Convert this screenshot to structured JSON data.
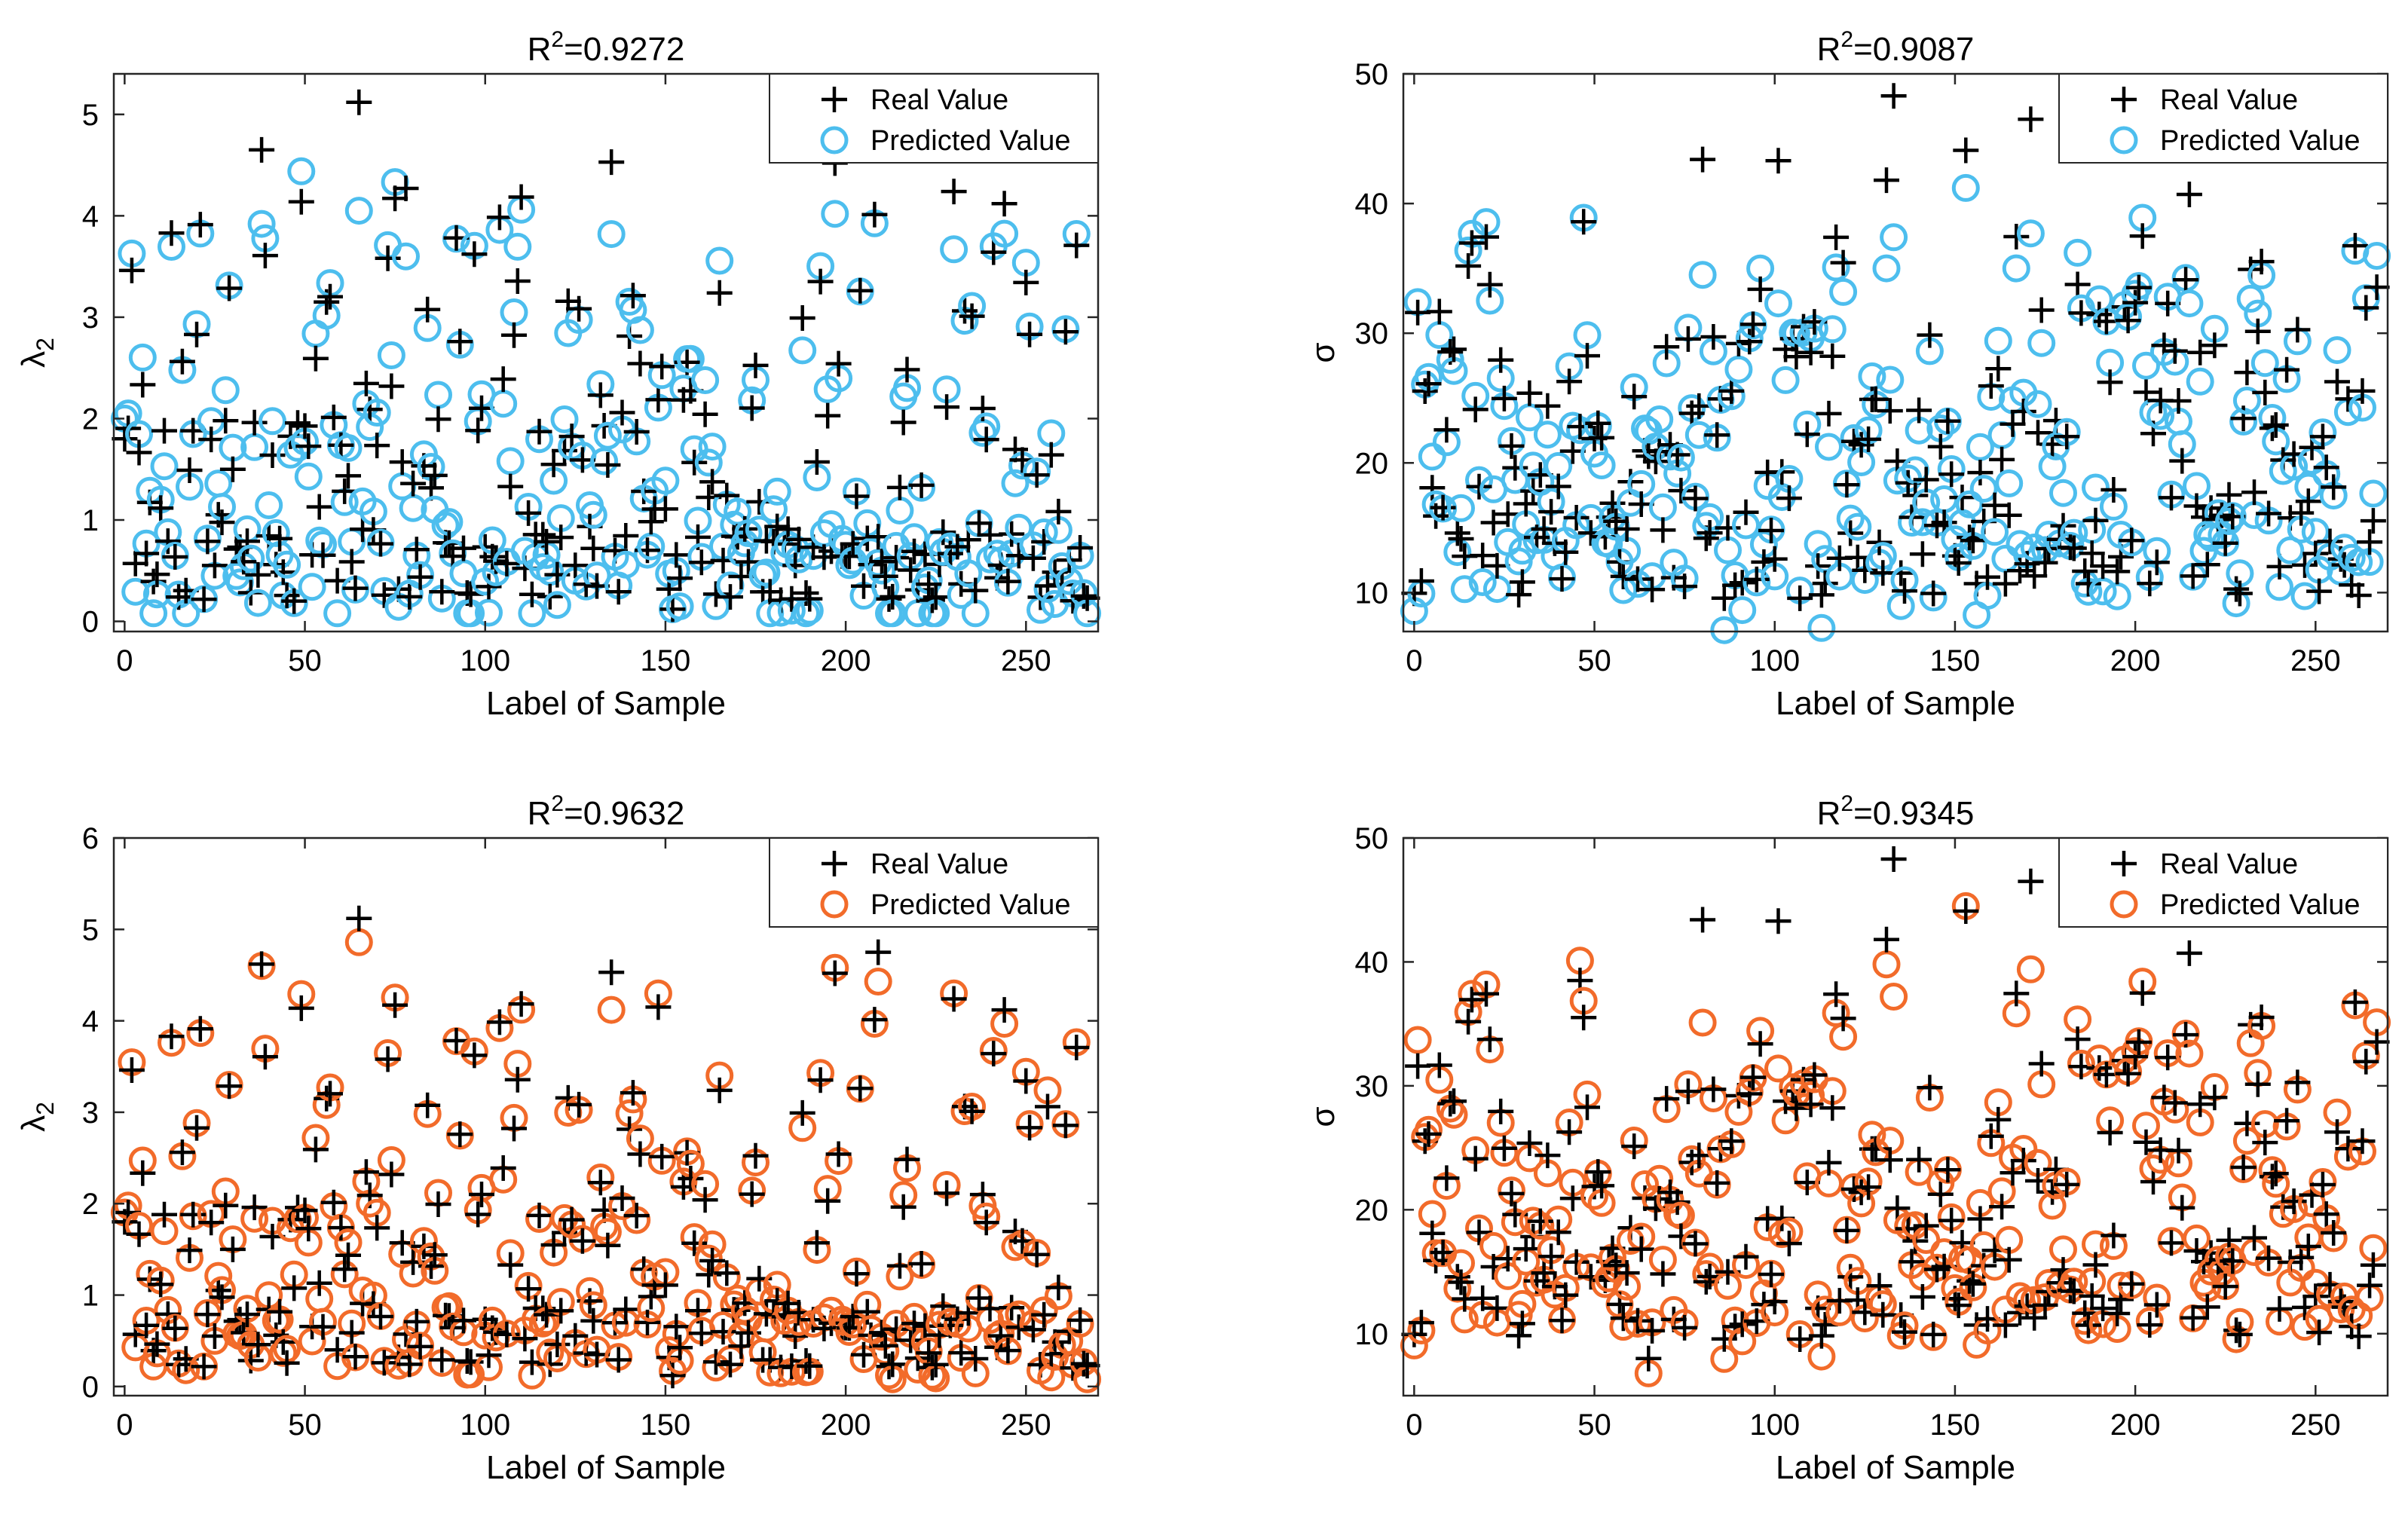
{
  "colors": {
    "predicted_blue": "#4DBEEE",
    "predicted_orange": "#F26B2A",
    "real": "#000000",
    "axis": "#262626"
  },
  "chart_data": [
    {
      "type": "scatter",
      "title": "R2=0.9272",
      "title_parts": {
        "base": "R",
        "sup": "2",
        "rest": "=0.9272"
      },
      "xlabel": "Label of Sample",
      "ylabel": "λ2",
      "ylabel_parts": {
        "base": "λ",
        "sub": "2"
      },
      "xlim": [
        -3,
        270
      ],
      "ylim": [
        -0.1,
        5.4
      ],
      "xticks": [
        0,
        50,
        100,
        150,
        200,
        250
      ],
      "yticks": [
        0,
        1,
        2,
        3,
        4,
        5
      ],
      "xtick_labels": [
        "0",
        "50",
        "100",
        "150",
        "200",
        "250"
      ],
      "ytick_labels": [
        "0",
        "1",
        "2",
        "3",
        "4",
        "5"
      ],
      "legend": {
        "position": "top-right",
        "entries": [
          "Real Value",
          "Predicted Value"
        ]
      },
      "predicted_color": "#4DBEEE",
      "gen": {
        "seed": 11,
        "n": 268,
        "lowMin": 0.2,
        "lowMax": 0.9,
        "midMin": 0.9,
        "midMax": 2.6,
        "highMin": 2.6,
        "highMax": 4.2,
        "noise": 0.35,
        "clampMin": 0.1,
        "clampMax": 5.1
      },
      "highlights": [
        {
          "x": 65,
          "real": 5.12,
          "pred": 4.05
        },
        {
          "x": 38,
          "real": 4.65,
          "pred": 3.92
        },
        {
          "x": 135,
          "real": 4.53,
          "pred": 3.82
        },
        {
          "x": 197,
          "real": 4.52,
          "pred": 4.02
        },
        {
          "x": 78,
          "real": 4.27,
          "pred": 3.6
        },
        {
          "x": 230,
          "real": 4.24,
          "pred": 3.67
        },
        {
          "x": 152,
          "real": 0.12,
          "pred": 0.12
        },
        {
          "x": 47,
          "real": 0.2,
          "pred": 0.18
        },
        {
          "x": 256,
          "real": 0.35,
          "pred": 0.32
        }
      ]
    },
    {
      "type": "scatter",
      "title": "R2=0.9087",
      "title_parts": {
        "base": "R",
        "sup": "2",
        "rest": "=0.9087"
      },
      "xlabel": "Label of Sample",
      "ylabel": "σ",
      "ylabel_parts": {
        "base": "σ",
        "sub": ""
      },
      "xlim": [
        -3,
        270
      ],
      "ylim": [
        7,
        50
      ],
      "xticks": [
        0,
        50,
        100,
        150,
        200,
        250
      ],
      "yticks": [
        10,
        20,
        30,
        40,
        50
      ],
      "xtick_labels": [
        "0",
        "50",
        "100",
        "150",
        "200",
        "250"
      ],
      "ytick_labels": [
        "10",
        "20",
        "30",
        "40",
        "50"
      ],
      "legend": {
        "position": "top-right",
        "entries": [
          "Real Value",
          "Predicted Value"
        ]
      },
      "predicted_color": "#4DBEEE",
      "gen": {
        "seed": 23,
        "n": 268,
        "lowMin": 9.5,
        "lowMax": 16,
        "midMin": 16,
        "midMax": 26,
        "highMin": 26,
        "highMax": 38,
        "noise": 2.6,
        "clampMin": 8,
        "clampMax": 48
      },
      "highlights": [
        {
          "x": 133,
          "real": 48.3,
          "pred": 37.4
        },
        {
          "x": 171,
          "real": 46.5,
          "pred": 37.7
        },
        {
          "x": 153,
          "real": 44.1,
          "pred": 41.2
        },
        {
          "x": 80,
          "real": 43.4,
          "pred": 34.5
        },
        {
          "x": 101,
          "real": 43.3,
          "pred": 32.3
        },
        {
          "x": 131,
          "real": 41.8,
          "pred": 35.0
        },
        {
          "x": 215,
          "real": 40.7,
          "pred": 32.3
        },
        {
          "x": 47,
          "real": 38.6,
          "pred": 38.9
        },
        {
          "x": 1,
          "real": 31.6,
          "pred": 32.4
        }
      ]
    },
    {
      "type": "scatter",
      "title": "R2=0.9632",
      "title_parts": {
        "base": "R",
        "sup": "2",
        "rest": "=0.9632"
      },
      "xlabel": "Label of Sample",
      "ylabel": "λ2",
      "ylabel_parts": {
        "base": "λ",
        "sub": "2"
      },
      "xlim": [
        -3,
        270
      ],
      "ylim": [
        -0.1,
        6
      ],
      "xticks": [
        0,
        50,
        100,
        150,
        200,
        250
      ],
      "yticks": [
        0,
        1,
        2,
        3,
        4,
        5,
        6
      ],
      "xtick_labels": [
        "0",
        "50",
        "100",
        "150",
        "200",
        "250"
      ],
      "ytick_labels": [
        "0",
        "1",
        "2",
        "3",
        "4",
        "5",
        "6"
      ],
      "legend": {
        "position": "top-right",
        "entries": [
          "Real Value",
          "Predicted Value"
        ]
      },
      "predicted_color": "#F26B2A",
      "gen": {
        "seed": 11,
        "n": 268,
        "lowMin": 0.2,
        "lowMax": 0.9,
        "midMin": 0.9,
        "midMax": 2.6,
        "highMin": 2.6,
        "highMax": 4.2,
        "noise": 0.18,
        "clampMin": 0.1,
        "clampMax": 5.1
      },
      "highlights": [
        {
          "x": 65,
          "real": 5.12,
          "pred": 4.86
        },
        {
          "x": 209,
          "real": 4.75,
          "pred": 4.43
        },
        {
          "x": 38,
          "real": 4.62,
          "pred": 4.6
        },
        {
          "x": 135,
          "real": 4.53,
          "pred": 4.12
        },
        {
          "x": 197,
          "real": 4.52,
          "pred": 4.58
        },
        {
          "x": 148,
          "real": 4.15,
          "pred": 4.3
        },
        {
          "x": 230,
          "real": 4.24,
          "pred": 4.3
        },
        {
          "x": 152,
          "real": 0.12,
          "pred": 0.17
        },
        {
          "x": 257,
          "real": 0.35,
          "pred": 0.1
        }
      ]
    },
    {
      "type": "scatter",
      "title": "R2=0.9345",
      "title_parts": {
        "base": "R",
        "sup": "2",
        "rest": "=0.9345"
      },
      "xlabel": "Label of Sample",
      "ylabel": "σ",
      "ylabel_parts": {
        "base": "σ",
        "sub": ""
      },
      "xlim": [
        -3,
        270
      ],
      "ylim": [
        5,
        50
      ],
      "xticks": [
        0,
        50,
        100,
        150,
        200,
        250
      ],
      "yticks": [
        10,
        20,
        30,
        40,
        50
      ],
      "xtick_labels": [
        "0",
        "50",
        "100",
        "150",
        "200",
        "250"
      ],
      "ytick_labels": [
        "10",
        "20",
        "30",
        "40",
        "50"
      ],
      "legend": {
        "position": "top-right",
        "entries": [
          "Real Value",
          "Predicted Value"
        ]
      },
      "predicted_color": "#F26B2A",
      "gen": {
        "seed": 23,
        "n": 268,
        "lowMin": 9.5,
        "lowMax": 16,
        "midMin": 16,
        "midMax": 26,
        "highMin": 26,
        "highMax": 38,
        "noise": 1.7,
        "clampMin": 8,
        "clampMax": 48
      },
      "highlights": [
        {
          "x": 133,
          "real": 48.3,
          "pred": 37.2
        },
        {
          "x": 171,
          "real": 46.5,
          "pred": 39.4
        },
        {
          "x": 153,
          "real": 44.1,
          "pred": 44.5
        },
        {
          "x": 80,
          "real": 43.4,
          "pred": 35.1
        },
        {
          "x": 101,
          "real": 43.3,
          "pred": 31.4
        },
        {
          "x": 131,
          "real": 41.8,
          "pred": 39.8
        },
        {
          "x": 215,
          "real": 40.7,
          "pred": 32.6
        },
        {
          "x": 46,
          "real": 38.5,
          "pred": 40.1
        },
        {
          "x": 65,
          "real": 8.0,
          "pred": 6.8
        },
        {
          "x": 1,
          "real": 31.6,
          "pred": 33.7
        }
      ]
    }
  ]
}
